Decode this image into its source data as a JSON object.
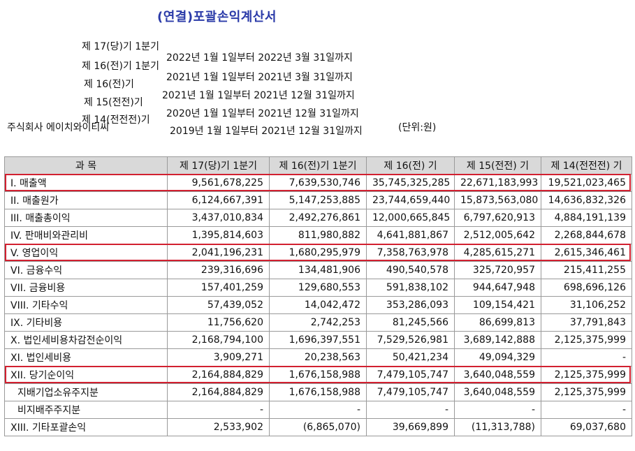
{
  "title": "(연결)포괄손익계산서",
  "periods": [
    {
      "label": "제 17(당)기 1분기",
      "range": "2022년 1월 1일부터 2022년 3월 31일까지"
    },
    {
      "label": "제 16(전)기 1분기",
      "range": "2021년 1월 1일부터 2021년 3월 31일까지"
    },
    {
      "label": "제 16(전)기",
      "range": "2021년 1월 1일부터 2021년 12월 31일까지"
    },
    {
      "label": "제 15(전전)기",
      "range": "2020년 1월 1일부터 2021년 12월 31일까지"
    },
    {
      "label": "제 14(전전전)기",
      "range": "2019년 1월 1일부터 2021년 12월 31일까지"
    }
  ],
  "company": "주식회사 에이치와이티씨",
  "unit": "(단위:원)",
  "table": {
    "headers": [
      "과  목",
      "제 17(당)기 1분기",
      "제 16(전)기 1분기",
      "제 16(전) 기",
      "제 15(전전) 기",
      "제 14(전전전) 기"
    ],
    "rows": [
      {
        "label": "I. 매출액",
        "values": [
          "9,561,678,225",
          "7,639,530,746",
          "35,745,325,285",
          "22,671,183,993",
          "19,521,023,465"
        ],
        "highlight": true
      },
      {
        "label": "II. 매출원가",
        "values": [
          "6,124,667,391",
          "5,147,253,885",
          "23,744,659,440",
          "15,873,563,080",
          "14,636,832,326"
        ]
      },
      {
        "label": "III. 매출총이익",
        "values": [
          "3,437,010,834",
          "2,492,276,861",
          "12,000,665,845",
          "6,797,620,913",
          "4,884,191,139"
        ]
      },
      {
        "label": "IV. 판매비와관리비",
        "values": [
          "1,395,814,603",
          "811,980,882",
          "4,641,881,867",
          "2,512,005,642",
          "2,268,844,678"
        ]
      },
      {
        "label": "V. 영업이익",
        "values": [
          "2,041,196,231",
          "1,680,295,979",
          "7,358,763,978",
          "4,285,615,271",
          "2,615,346,461"
        ],
        "highlight": true
      },
      {
        "label": "VI. 금융수익",
        "values": [
          "239,316,696",
          "134,481,906",
          "490,540,578",
          "325,720,957",
          "215,411,255"
        ]
      },
      {
        "label": "VII. 금융비용",
        "values": [
          "157,401,259",
          "129,680,553",
          "591,838,102",
          "944,647,948",
          "698,696,126"
        ]
      },
      {
        "label": "VIII. 기타수익",
        "values": [
          "57,439,052",
          "14,042,472",
          "353,286,093",
          "109,154,421",
          "31,106,252"
        ]
      },
      {
        "label": "IX. 기타비용",
        "values": [
          "11,756,620",
          "2,742,253",
          "81,245,566",
          "86,699,813",
          "37,791,843"
        ]
      },
      {
        "label": "X. 법인세비용차감전순이익",
        "values": [
          "2,168,794,100",
          "1,696,397,551",
          "7,529,526,981",
          "3,689,142,888",
          "2,125,375,999"
        ]
      },
      {
        "label": "XI. 법인세비용",
        "values": [
          "3,909,271",
          "20,238,563",
          "50,421,234",
          "49,094,329",
          "-"
        ]
      },
      {
        "label": "XII. 당기순이익",
        "values": [
          "2,164,884,829",
          "1,676,158,988",
          "7,479,105,747",
          "3,640,048,559",
          "2,125,375,999"
        ],
        "highlight": true
      },
      {
        "label": "지배기업소유주지분",
        "values": [
          "2,164,884,829",
          "1,676,158,988",
          "7,479,105,747",
          "3,640,048,559",
          "2,125,375,999"
        ],
        "sub": true
      },
      {
        "label": "비지배주주지분",
        "values": [
          "-",
          "-",
          "-",
          "-",
          "-"
        ],
        "sub": true
      },
      {
        "label": "XIII. 기타포괄손익",
        "values": [
          "2,533,902",
          "(6,865,070)",
          "39,669,899",
          "(11,313,788)",
          "69,037,680"
        ]
      }
    ]
  },
  "colors": {
    "title": "#2a3aa8",
    "highlight": "#d22030",
    "header_bg": "#d9d9d9"
  }
}
